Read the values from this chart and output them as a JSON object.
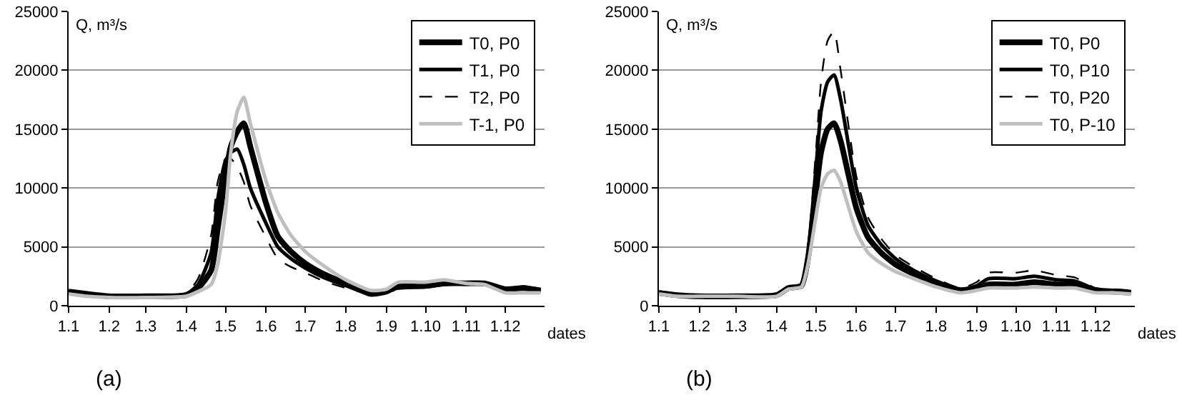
{
  "chart_data": [
    {
      "type": "line",
      "xlabel": "dates",
      "ylabel": "Q, m³/s",
      "annotations": [
        "(a)"
      ],
      "grid": "y",
      "legend": "top right",
      "x": [
        "--01-01",
        "--01-15",
        "--02-01",
        "--03-01",
        "--04-01",
        "--04-10",
        "--04-20",
        "--04-25",
        "--05-01",
        "--05-05",
        "--05-10",
        "--05-15",
        "--05-20",
        "--06-01",
        "--06-10",
        "--06-20",
        "--07-01",
        "--07-15",
        "--08-01",
        "--08-20",
        "--09-01",
        "--09-10",
        "--10-01",
        "--10-15",
        "--11-01",
        "--11-15",
        "--12-01",
        "--12-15",
        "--12-28"
      ],
      "xlim": [
        "--01-01",
        "--12-31"
      ],
      "xticks": [
        {
          "value": "--01-01",
          "label": "1.1"
        },
        {
          "value": "--02-01",
          "label": "1.2"
        },
        {
          "value": "--03-01",
          "label": "1.3"
        },
        {
          "value": "--04-01",
          "label": "1.4"
        },
        {
          "value": "--05-01",
          "label": "1.5"
        },
        {
          "value": "--06-01",
          "label": "1.6"
        },
        {
          "value": "--07-01",
          "label": "1.7"
        },
        {
          "value": "--08-01",
          "label": "1.8"
        },
        {
          "value": "--09-01",
          "label": "1.9"
        },
        {
          "value": "--10-01",
          "label": "1.10"
        },
        {
          "value": "--11-01",
          "label": "1.11"
        },
        {
          "value": "--12-01",
          "label": "1.12"
        }
      ],
      "ylim": [
        0,
        25000
      ],
      "yticks": [
        0,
        5000,
        10000,
        15000,
        20000,
        25000
      ],
      "series": [
        {
          "name": "T0, P0",
          "color": "#000000",
          "line_style": "solid",
          "values": [
            1200,
            1000,
            800,
            800,
            900,
            1500,
            3000,
            6500,
            11000,
            13500,
            14800,
            15500,
            13500,
            8700,
            5900,
            4600,
            3600,
            2700,
            1900,
            1000,
            1200,
            1700,
            1700,
            1900,
            1900,
            1900,
            1400,
            1500,
            1300
          ]
        },
        {
          "name": "T1, P0",
          "color": "#000000",
          "line_style": "solid",
          "values": [
            1200,
            1000,
            800,
            800,
            1000,
            1800,
            4500,
            9000,
            12300,
            13000,
            13300,
            12000,
            10000,
            7000,
            5000,
            4000,
            3200,
            2400,
            1700,
            1000,
            1200,
            1500,
            1600,
            1800,
            1900,
            1900,
            1300,
            1600,
            1200
          ]
        },
        {
          "name": "T2, P0",
          "color": "#000000",
          "line_style": "dashed",
          "values": [
            1100,
            900,
            800,
            800,
            1100,
            2300,
            6000,
            10500,
            12500,
            12500,
            11800,
            10500,
            8500,
            5800,
            4000,
            3300,
            2800,
            2100,
            1500,
            1000,
            1100,
            1400,
            1600,
            1800,
            1900,
            1900,
            1300,
            1500,
            1200
          ]
        },
        {
          "name": "T-1, P0",
          "color": "#bfbfbf",
          "line_style": "solid",
          "values": [
            1000,
            800,
            700,
            700,
            800,
            1200,
            1800,
            3500,
            8000,
            13000,
            16500,
            17700,
            15500,
            10600,
            7900,
            6000,
            4600,
            3400,
            2200,
            1300,
            1400,
            2000,
            2000,
            2200,
            1900,
            1800,
            1100,
            1100,
            1100
          ]
        }
      ]
    },
    {
      "type": "line",
      "xlabel": "dates",
      "ylabel": "Q, m³/s",
      "annotations": [
        "(b)"
      ],
      "grid": "y",
      "legend": "top right",
      "x": [
        "--01-01",
        "--01-15",
        "--02-01",
        "--03-01",
        "--04-01",
        "--04-10",
        "--04-20",
        "--04-25",
        "--05-01",
        "--05-05",
        "--05-10",
        "--05-15",
        "--05-20",
        "--06-01",
        "--06-10",
        "--06-20",
        "--07-01",
        "--07-15",
        "--08-01",
        "--08-20",
        "--09-01",
        "--09-10",
        "--10-01",
        "--10-15",
        "--11-01",
        "--11-15",
        "--12-01",
        "--12-15",
        "--12-28"
      ],
      "xlim": [
        "--01-01",
        "--12-31"
      ],
      "xticks": [
        {
          "value": "--01-01",
          "label": "1.1"
        },
        {
          "value": "--02-01",
          "label": "1.2"
        },
        {
          "value": "--03-01",
          "label": "1.3"
        },
        {
          "value": "--04-01",
          "label": "1.4"
        },
        {
          "value": "--05-01",
          "label": "1.5"
        },
        {
          "value": "--06-01",
          "label": "1.6"
        },
        {
          "value": "--07-01",
          "label": "1.7"
        },
        {
          "value": "--08-01",
          "label": "1.8"
        },
        {
          "value": "--09-01",
          "label": "1.9"
        },
        {
          "value": "--10-01",
          "label": "1.10"
        },
        {
          "value": "--11-01",
          "label": "1.11"
        },
        {
          "value": "--12-01",
          "label": "1.12"
        }
      ],
      "ylim": [
        0,
        25000
      ],
      "yticks": [
        0,
        5000,
        10000,
        15000,
        20000,
        25000
      ],
      "series": [
        {
          "name": "T0, P0",
          "color": "#000000",
          "line_style": "solid",
          "values": [
            1100,
            900,
            800,
            800,
            900,
            1500,
            1700,
            4000,
            9500,
            13000,
            15000,
            15500,
            14000,
            8300,
            5800,
            4500,
            3500,
            2700,
            1900,
            1300,
            1500,
            1800,
            1800,
            2000,
            1800,
            1800,
            1300,
            1200,
            1100
          ]
        },
        {
          "name": "T0, P10",
          "color": "#000000",
          "line_style": "solid",
          "values": [
            1100,
            900,
            800,
            800,
            900,
            1500,
            1700,
            4500,
            11500,
            16500,
            19000,
            19600,
            17500,
            10000,
            6800,
            5200,
            4000,
            3000,
            2100,
            1400,
            1700,
            2300,
            2300,
            2500,
            2200,
            2100,
            1400,
            1300,
            1200
          ]
        },
        {
          "name": "T0, P20",
          "color": "#000000",
          "line_style": "dashed",
          "values": [
            1100,
            900,
            800,
            800,
            900,
            1500,
            1800,
            5000,
            13000,
            19000,
            22500,
            23300,
            20000,
            11000,
            7500,
            5700,
            4300,
            3300,
            2300,
            1500,
            2000,
            2800,
            2800,
            3000,
            2600,
            2400,
            1500,
            1400,
            1300
          ]
        },
        {
          "name": "T0, P-10",
          "color": "#bfbfbf",
          "line_style": "solid",
          "values": [
            1000,
            800,
            800,
            800,
            800,
            1400,
            1600,
            3500,
            7500,
            10000,
            11200,
            11500,
            10500,
            6300,
            4500,
            3600,
            2900,
            2300,
            1600,
            1100,
            1300,
            1500,
            1500,
            1600,
            1500,
            1500,
            1100,
            1100,
            1000
          ]
        }
      ]
    }
  ]
}
